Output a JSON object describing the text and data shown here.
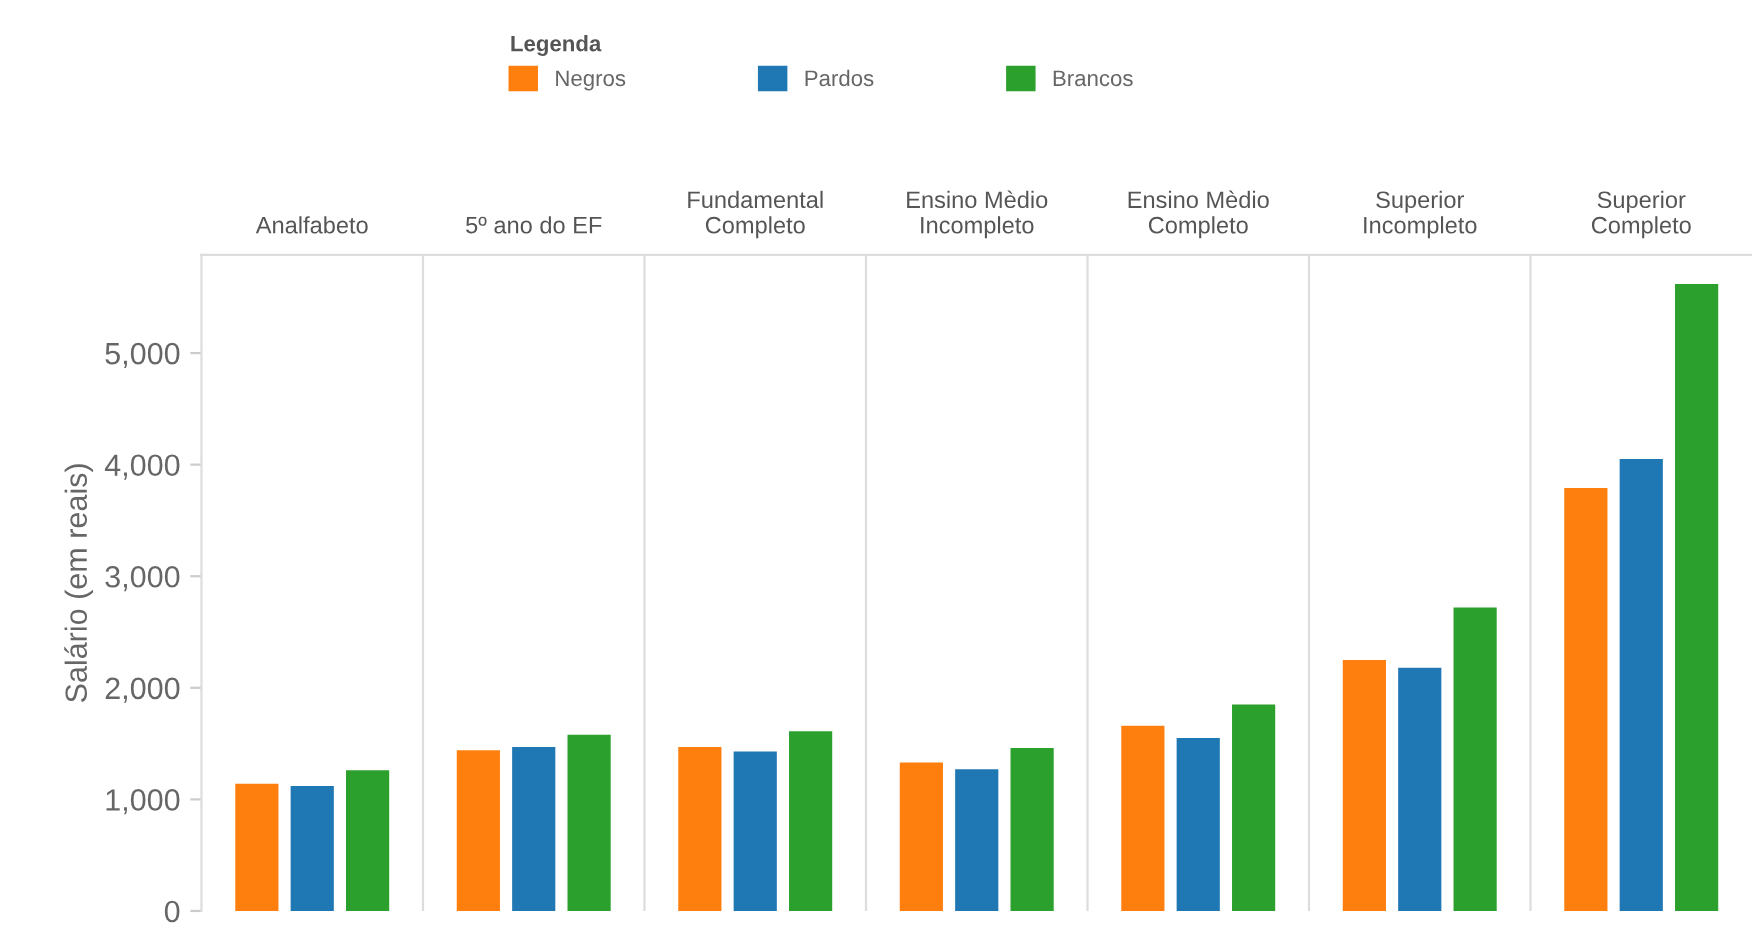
{
  "chart_data": {
    "type": "bar",
    "categories": [
      "Analfabeto",
      "5º ano do EF",
      "Fundamental Completo",
      "Ensino Mèdio Incompleto",
      "Ensino Mèdio Completo",
      "Superior Incompleto",
      "Superior Completo"
    ],
    "series": [
      {
        "name": "Negros",
        "color": "#ff7f0e",
        "values": [
          1140,
          1440,
          1470,
          1330,
          1660,
          2250,
          3790
        ]
      },
      {
        "name": "Pardos",
        "color": "#1f77b4",
        "values": [
          1120,
          1470,
          1430,
          1270,
          1550,
          2180,
          4050
        ]
      },
      {
        "name": "Brancos",
        "color": "#2ca02c",
        "values": [
          1260,
          1580,
          1610,
          1460,
          1850,
          2720,
          5620
        ]
      }
    ],
    "ylabel": "Salário (em reais)",
    "legend_title": "Legenda",
    "legend": "top",
    "ylim": [
      0,
      5880
    ],
    "yticks": [
      0,
      {
        "value": 1000,
        "label": "1,000"
      },
      {
        "value": 2000,
        "label": "2,000"
      },
      {
        "value": 3000,
        "label": "3,000"
      },
      {
        "value": 4000,
        "label": "4,000"
      },
      {
        "value": 5000,
        "label": "5,000"
      }
    ],
    "grid": false
  }
}
